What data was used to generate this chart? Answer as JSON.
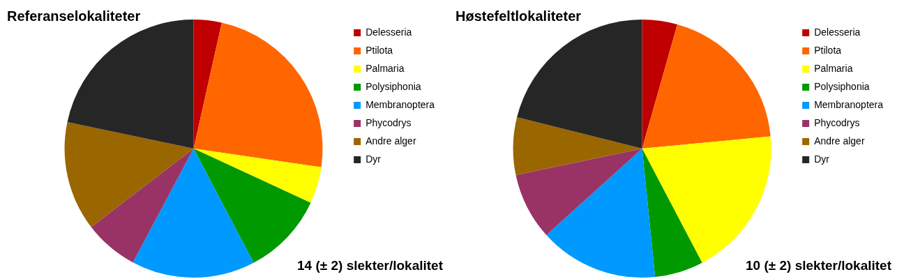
{
  "chart_data": [
    {
      "type": "pie",
      "title": "Referanselokaliteter",
      "categories": [
        "Delesseria",
        "Ptilota",
        "Palmaria",
        "Polysiphonia",
        "Membranoptera",
        "Phycodrys",
        "Andre alger",
        "Dyr"
      ],
      "values": [
        3.5,
        23.8,
        4.6,
        10.4,
        15.5,
        6.8,
        13.7,
        21.7
      ],
      "colors": [
        "#c00000",
        "#ff6600",
        "#ffff00",
        "#009900",
        "#0099ff",
        "#993366",
        "#996600",
        "#262626"
      ],
      "legend": "top right",
      "annotations": [
        "14 (± 2) slekter/lokalitet"
      ]
    },
    {
      "type": "pie",
      "title": "Høstefeltlokaliteter",
      "categories": [
        "Delesseria",
        "Ptilota",
        "Palmaria",
        "Polysiphonia",
        "Membranoptera",
        "Phycodrys",
        "Andre alger",
        "Dyr"
      ],
      "values": [
        4.4,
        19.1,
        18.8,
        6.1,
        14.9,
        8.4,
        7.2,
        21.1
      ],
      "colors": [
        "#c00000",
        "#ff6600",
        "#ffff00",
        "#009900",
        "#0099ff",
        "#993366",
        "#996600",
        "#262626"
      ],
      "legend": "top right",
      "annotations": [
        "10 (± 2) slekter/lokalitet"
      ]
    }
  ]
}
